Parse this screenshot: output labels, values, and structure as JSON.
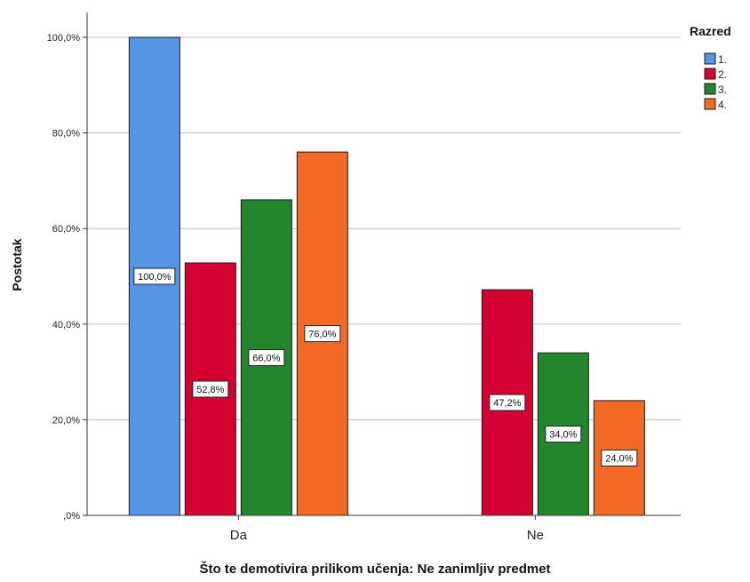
{
  "chart_data": {
    "type": "bar",
    "categories": [
      "Da",
      "Ne"
    ],
    "series": [
      {
        "name": "1.",
        "values": [
          100.0,
          0.0
        ],
        "labels": [
          "100,0%",
          null
        ],
        "color": "#5596E6"
      },
      {
        "name": "2.",
        "values": [
          52.8,
          47.2
        ],
        "labels": [
          "52,8%",
          "47,2%"
        ],
        "color": "#D30032"
      },
      {
        "name": "3.",
        "values": [
          66.0,
          34.0
        ],
        "labels": [
          "66,0%",
          "34,0%"
        ],
        "color": "#24862C"
      },
      {
        "name": "4.",
        "values": [
          76.0,
          24.0
        ],
        "labels": [
          "76,0%",
          "24,0%"
        ],
        "color": "#F26A26"
      }
    ],
    "title": "",
    "xlabel": "Što te demotivira prilikom učenja: Ne zanimljiv predmet",
    "ylabel": "Postotak",
    "ylim": [
      0,
      100
    ],
    "yticks": [
      0,
      20,
      40,
      60,
      80,
      100
    ],
    "ytick_labels": [
      ",0%",
      "20,0%",
      "40,0%",
      "60,0%",
      "80,0%",
      "100,0%"
    ],
    "grid": true,
    "legend_title": "Razred",
    "legend_position": "top-right"
  }
}
